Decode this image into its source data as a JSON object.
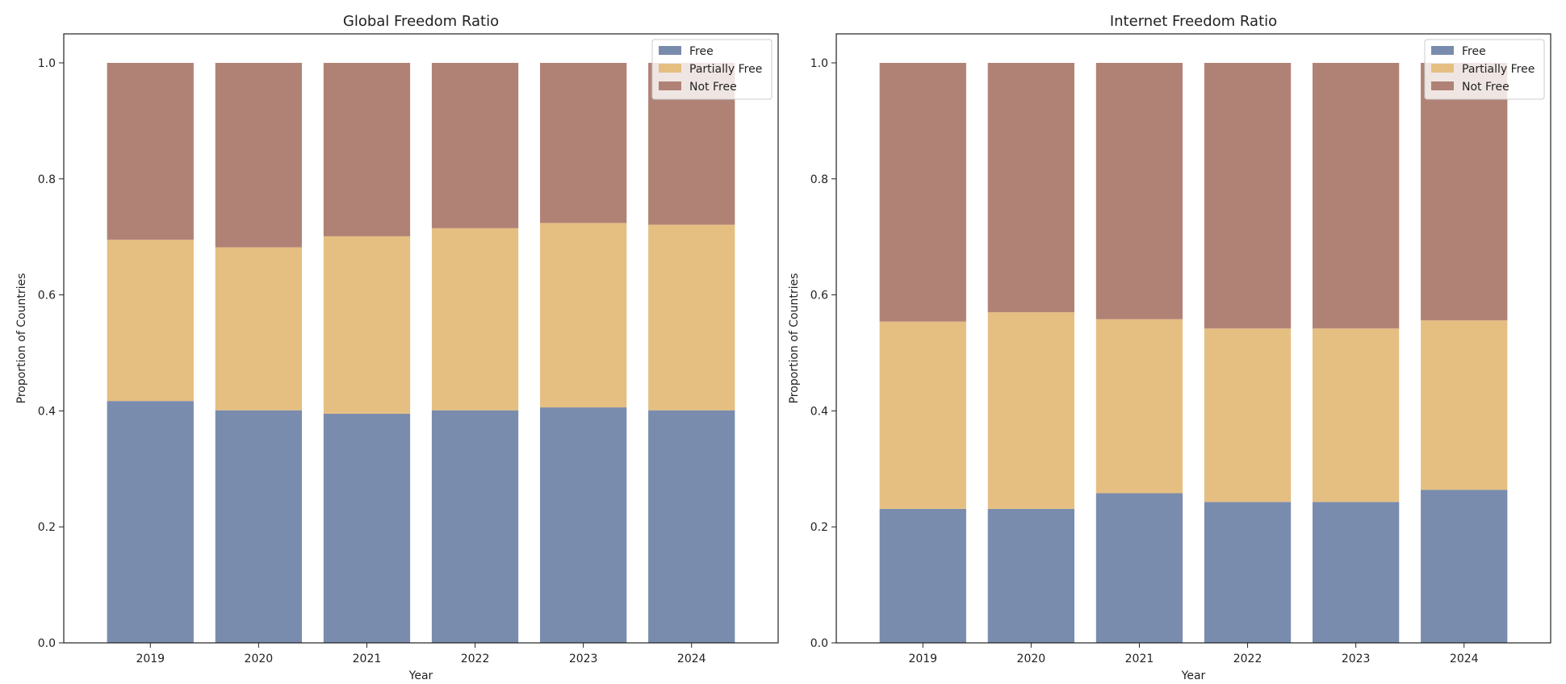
{
  "chart_data": [
    {
      "type": "bar",
      "stacked": true,
      "title": "Global Freedom Ratio",
      "xlabel": "Year",
      "ylabel": "Proportion of Countries",
      "categories": [
        "2019",
        "2020",
        "2021",
        "2022",
        "2023",
        "2024"
      ],
      "series": [
        {
          "name": "Free",
          "color": "#7a8cad",
          "values": [
            0.417,
            0.401,
            0.395,
            0.401,
            0.406,
            0.401
          ]
        },
        {
          "name": "Partially Free",
          "color": "#e5bf82",
          "values": [
            0.278,
            0.281,
            0.306,
            0.314,
            0.318,
            0.32
          ]
        },
        {
          "name": "Not Free",
          "color": "#b08276",
          "values": [
            0.305,
            0.318,
            0.299,
            0.285,
            0.276,
            0.279
          ]
        }
      ],
      "ylim": [
        0,
        1.05
      ],
      "yticks": [
        "0.0",
        "0.2",
        "0.4",
        "0.6",
        "0.8",
        "1.0"
      ],
      "legend_position": "top-right",
      "grid": false
    },
    {
      "type": "bar",
      "stacked": true,
      "title": "Internet Freedom Ratio",
      "xlabel": "Year",
      "ylabel": "Proportion of Countries",
      "categories": [
        "2019",
        "2020",
        "2021",
        "2022",
        "2023",
        "2024"
      ],
      "series": [
        {
          "name": "Free",
          "color": "#7a8cad",
          "values": [
            0.231,
            0.231,
            0.258,
            0.243,
            0.243,
            0.264
          ]
        },
        {
          "name": "Partially Free",
          "color": "#e5bf82",
          "values": [
            0.323,
            0.339,
            0.3,
            0.299,
            0.299,
            0.292
          ]
        },
        {
          "name": "Not Free",
          "color": "#b08276",
          "values": [
            0.446,
            0.43,
            0.442,
            0.458,
            0.458,
            0.444
          ]
        }
      ],
      "ylim": [
        0,
        1.05
      ],
      "yticks": [
        "0.0",
        "0.2",
        "0.4",
        "0.6",
        "0.8",
        "1.0"
      ],
      "legend_position": "top-right",
      "grid": false
    }
  ]
}
